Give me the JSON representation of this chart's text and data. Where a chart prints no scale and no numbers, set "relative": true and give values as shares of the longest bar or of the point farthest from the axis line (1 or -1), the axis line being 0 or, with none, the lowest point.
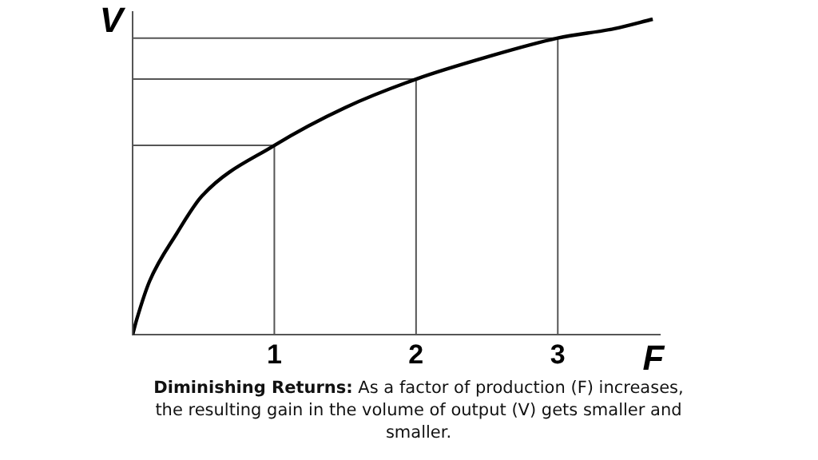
{
  "chart_data": {
    "type": "line",
    "xlabel": "F",
    "ylabel": "V",
    "relative": true,
    "marker": "none",
    "xlim": [
      0,
      3.72
    ],
    "xticks": [
      1,
      2,
      3
    ],
    "series": [
      {
        "color": "#000000",
        "x": [
          0,
          0.03,
          0.12,
          0.31,
          0.49,
          1,
          1.5,
          2,
          2.5,
          3,
          3.4,
          3.67
        ],
        "values": [
          0,
          0.05,
          0.17,
          0.32,
          0.44,
          0.6,
          0.72,
          0.81,
          0.88,
          0.94,
          0.97,
          1
        ]
      },
      {
        "color": "#555555",
        "x": [
          1,
          1
        ],
        "values": [
          0,
          0.6
        ]
      },
      {
        "color": "#555555",
        "x": [
          0,
          1
        ],
        "values": [
          0.6,
          0.6
        ]
      },
      {
        "color": "#555555",
        "x": [
          2,
          2
        ],
        "values": [
          0,
          0.81
        ]
      },
      {
        "color": "#555555",
        "x": [
          0,
          2
        ],
        "values": [
          0.81,
          0.81
        ]
      },
      {
        "color": "#555555",
        "x": [
          3,
          3
        ],
        "values": [
          0,
          0.94
        ]
      },
      {
        "color": "#555555",
        "x": [
          0,
          3
        ],
        "values": [
          0.94,
          0.94
        ]
      }
    ],
    "annotations": [
      "Diminishing Returns:",
      "As a factor of production (F) increases, the resulting gain in the volume of output (V) gets smaller and smaller."
    ]
  }
}
